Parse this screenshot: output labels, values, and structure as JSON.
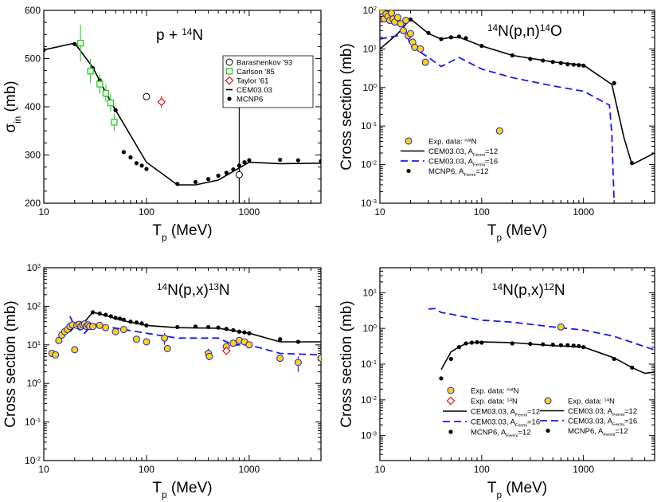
{
  "chart_data": [
    {
      "type": "scatter",
      "id": "p1",
      "title_parts": [
        "p + ",
        "14",
        "N"
      ],
      "xlabel_parts": [
        "T",
        "p",
        " (MeV)"
      ],
      "ylabel_parts": [
        "σ",
        "in",
        " (mb)"
      ],
      "xscale": "log",
      "yscale": "linear",
      "xlim": [
        10,
        5000
      ],
      "ylim": [
        200,
        600
      ],
      "xticks": [
        {
          "v": 10,
          "label": "10"
        },
        {
          "v": 100,
          "label": "100"
        },
        {
          "v": 1000,
          "label": "1000"
        }
      ],
      "yticks": [
        {
          "v": 200,
          "label": "200"
        },
        {
          "v": 300,
          "label": "300"
        },
        {
          "v": 400,
          "label": "400"
        },
        {
          "v": 500,
          "label": "500"
        },
        {
          "v": 600,
          "label": "600"
        }
      ],
      "legend_position": "top-right",
      "legend": [
        {
          "marker": "circle-open",
          "label_parts": [
            "Barashenkov '93"
          ]
        },
        {
          "marker": "square-green",
          "label_parts": [
            "Carlson '85"
          ]
        },
        {
          "marker": "diamond-red",
          "label_parts": [
            "Taylor '61"
          ]
        },
        {
          "line": "black",
          "label_parts": [
            "CEM03.03"
          ]
        },
        {
          "marker": "dot",
          "label_parts": [
            "MCNP6"
          ]
        }
      ],
      "series": [
        {
          "name": "CEM03.03",
          "style": "black-line",
          "x": [
            10,
            20,
            30,
            40,
            50,
            100,
            200,
            300,
            500,
            1000,
            2000,
            5000
          ],
          "y": [
            518,
            532,
            482,
            430,
            393,
            285,
            238,
            238,
            248,
            285,
            282,
            283
          ]
        },
        {
          "name": "MCNP6",
          "style": "dots",
          "x": [
            10,
            20,
            30,
            35,
            40,
            50,
            60,
            70,
            80,
            90,
            100,
            200,
            300,
            400,
            500,
            600,
            700,
            800,
            900,
            1000,
            2000,
            3000,
            5000
          ],
          "y": [
            518,
            530,
            480,
            455,
            425,
            393,
            306,
            295,
            283,
            278,
            271,
            240,
            244,
            250,
            257,
            263,
            270,
            278,
            285,
            289,
            290,
            289,
            287
          ]
        },
        {
          "name": "Carlson '85",
          "style": "square-green",
          "x": [
            22.8,
            28.5,
            35.1,
            40.2,
            44.8,
            48.5
          ],
          "y": [
            532,
            474,
            447,
            428,
            408,
            368
          ],
          "err": [
            38,
            25,
            20,
            18,
            18,
            18
          ]
        },
        {
          "name": "Barashenkov '93",
          "style": "circle-open",
          "x": [
            100,
            800
          ],
          "y": [
            421,
            259
          ],
          "err": [
            0,
            140
          ]
        },
        {
          "name": "Taylor '61",
          "style": "diamond-red",
          "x": [
            140
          ],
          "y": [
            410
          ],
          "err": [
            12
          ]
        }
      ]
    },
    {
      "type": "scatter",
      "id": "p2",
      "title_parts": [
        "14",
        "N(p,n)",
        "14",
        "O"
      ],
      "xlabel_parts": [
        "T",
        "p",
        " (MeV)"
      ],
      "ylabel_parts": [
        "Cross section (mb)"
      ],
      "xscale": "log",
      "yscale": "log",
      "xlim": [
        10,
        5000
      ],
      "ylim": [
        0.001,
        100
      ],
      "xticks": [
        {
          "v": 10,
          "label": "10"
        },
        {
          "v": 100,
          "label": "100"
        },
        {
          "v": 1000,
          "label": "1000"
        }
      ],
      "yticks": [
        {
          "v": 0.001,
          "b": "10",
          "e": "-3"
        },
        {
          "v": 0.01,
          "b": "10",
          "e": "-2"
        },
        {
          "v": 0.1,
          "b": "10",
          "e": "-1"
        },
        {
          "v": 1,
          "b": "10",
          "e": "0"
        },
        {
          "v": 10,
          "b": "10",
          "e": "1"
        },
        {
          "v": 100,
          "b": "10",
          "e": "2"
        }
      ],
      "legend_position": "bottom-left",
      "legend": [
        {
          "marker": "circle-yellow",
          "label_parts": [
            "Exp. data: ",
            "nat",
            "N"
          ]
        },
        {
          "line": "black",
          "label_parts": [
            "CEM03.03, A",
            "Fermi",
            "=12"
          ]
        },
        {
          "line": "blue-dash",
          "label_parts": [
            "CEM03.03, A",
            "Fermi",
            "=16"
          ]
        },
        {
          "marker": "dot",
          "label_parts": [
            "MCNP6, A",
            "Fermi",
            "=12"
          ]
        }
      ],
      "series": [
        {
          "name": "CEM03.03, A_Fermi=12",
          "style": "black-line",
          "x": [
            10,
            12,
            15,
            20,
            30,
            40,
            50,
            60,
            100,
            200,
            500,
            1000,
            1900,
            2500,
            3000,
            5000
          ],
          "y": [
            10,
            15,
            25,
            60,
            25,
            18,
            20,
            20,
            12,
            6.8,
            4.6,
            3.8,
            1.2,
            0.05,
            0.01,
            0.02
          ]
        },
        {
          "name": "CEM03.03, A_Fermi=16",
          "style": "blue-dash",
          "x": [
            10,
            15,
            18,
            20,
            30,
            40,
            60,
            100,
            200,
            500,
            1000,
            1800,
            1900,
            2000
          ],
          "y": [
            18,
            22,
            30,
            12,
            6,
            3.5,
            6,
            3,
            1.8,
            1.1,
            0.8,
            0.35,
            0.06,
            0.0011
          ]
        },
        {
          "name": "MCNP6, A_Fermi=12",
          "style": "dots",
          "x": [
            20,
            30,
            40,
            50,
            60,
            70,
            100,
            200,
            300,
            400,
            500,
            600,
            700,
            800,
            900,
            1000,
            2000,
            3000
          ],
          "y": [
            58,
            26,
            18,
            20,
            21,
            19,
            12,
            6.8,
            5.5,
            5,
            4.6,
            4.3,
            4,
            3.9,
            3.8,
            3.7,
            1.3,
            0.011
          ]
        },
        {
          "name": "Exp. data: natN",
          "style": "circle-yellow",
          "x": [
            10.5,
            11,
            11.5,
            12,
            12.5,
            13,
            13.5,
            14,
            15,
            16,
            17,
            18,
            19,
            20,
            21,
            22,
            25,
            28,
            150
          ],
          "y": [
            95,
            60,
            80,
            70,
            55,
            85,
            60,
            50,
            65,
            45,
            30,
            55,
            22,
            25,
            15,
            11,
            10,
            4.5,
            0.075
          ]
        }
      ]
    },
    {
      "type": "scatter",
      "id": "p3",
      "title_parts": [
        "14",
        "N(p,x)",
        "13",
        "N"
      ],
      "xlabel_parts": [
        "T",
        "p",
        " (MeV)"
      ],
      "ylabel_parts": [
        "Cross section (mb)"
      ],
      "xscale": "log",
      "yscale": "log",
      "xlim": [
        10,
        5000
      ],
      "ylim": [
        0.01,
        1000
      ],
      "xticks": [
        {
          "v": 10,
          "label": "10"
        },
        {
          "v": 100,
          "label": "100"
        },
        {
          "v": 1000,
          "label": "1000"
        }
      ],
      "yticks": [
        {
          "v": 0.01,
          "b": "10",
          "e": "-2"
        },
        {
          "v": 0.1,
          "b": "10",
          "e": "-1"
        },
        {
          "v": 1,
          "b": "10",
          "e": "0"
        },
        {
          "v": 10,
          "b": "10",
          "e": "1"
        },
        {
          "v": 100,
          "b": "10",
          "e": "2"
        },
        {
          "v": 1000,
          "b": "10",
          "e": "3"
        }
      ],
      "legend_position": "bottom-right",
      "legend": [
        {
          "marker": "circle-yellow",
          "label_parts": [
            "Exp. data: ",
            "nat",
            "N"
          ]
        },
        {
          "marker": "diamond-red",
          "label_parts": [
            "Exp. data: ",
            "14",
            "N"
          ]
        },
        {
          "line": "black",
          "label_parts": [
            "CEM03.03, A",
            "Fermi",
            "=12"
          ]
        },
        {
          "line": "blue-dash",
          "label_parts": [
            "CEM03.03, A",
            "Fermi",
            "=16"
          ]
        },
        {
          "marker": "dot",
          "label_parts": [
            "MCNP6, A",
            "Fermi",
            "=12"
          ]
        }
      ],
      "series": [
        {
          "name": "CEM03.03, A_Fermi=12",
          "style": "black-line",
          "x": [
            18,
            20,
            25,
            30,
            40,
            50,
            60,
            100,
            200,
            500,
            1000,
            2000,
            5000
          ],
          "y": [
            22,
            30,
            40,
            70,
            58,
            48,
            42,
            32,
            28,
            27,
            20,
            12,
            12
          ]
        },
        {
          "name": "CEM03.03, A_Fermi=16",
          "style": "blue-dash",
          "x": [
            18,
            20,
            25,
            30,
            40,
            60,
            100,
            200,
            500,
            700,
            1000,
            2000,
            5000
          ],
          "y": [
            55,
            30,
            20,
            35,
            30,
            25,
            20,
            15,
            15,
            10,
            10,
            6,
            5.5
          ]
        },
        {
          "name": "MCNP6, A_Fermi=12",
          "style": "dots",
          "x": [
            30,
            35,
            40,
            45,
            50,
            55,
            60,
            70,
            80,
            90,
            100,
            200,
            300,
            400,
            500,
            600,
            700,
            800,
            900,
            1000,
            2000,
            3000
          ],
          "y": [
            70,
            65,
            60,
            55,
            50,
            48,
            45,
            40,
            38,
            36,
            32,
            29,
            30,
            29,
            28,
            26,
            24,
            22,
            21,
            20,
            14,
            12
          ]
        },
        {
          "name": "Exp. data: natN",
          "style": "circle-yellow",
          "x": [
            12,
            13,
            14,
            15,
            16,
            17,
            18,
            19,
            20,
            21,
            22,
            23,
            24,
            25,
            26,
            27,
            28,
            30,
            35,
            40,
            50,
            60,
            80,
            100,
            150,
            160,
            400,
            410,
            600,
            700,
            800,
            900,
            1000,
            2000,
            3000,
            5000
          ],
          "y": [
            6,
            5.5,
            13,
            18,
            22,
            25,
            30,
            33,
            7.5,
            32,
            34,
            30,
            33,
            35,
            30,
            33,
            30,
            30,
            32,
            28,
            22,
            25,
            14,
            12,
            15,
            8,
            6,
            5,
            9,
            11,
            13,
            12,
            10,
            4.5,
            3.5,
            4.5
          ],
          "err": [
            0,
            0,
            0,
            0,
            0,
            0,
            0,
            0,
            0,
            0,
            0,
            0,
            0,
            0,
            0,
            0,
            0,
            0,
            0,
            0,
            0,
            0,
            0,
            0,
            5,
            0,
            2,
            0,
            0,
            0,
            0,
            0,
            0,
            0,
            1.5,
            0
          ]
        },
        {
          "name": "Exp. data: 14N",
          "style": "diamond-red",
          "x": [
            600
          ],
          "y": [
            7
          ],
          "err": [
            0
          ]
        }
      ]
    },
    {
      "type": "scatter",
      "id": "p4",
      "title_parts": [
        "14",
        "N(p,x)",
        "12",
        "N"
      ],
      "xlabel_parts": [
        "T",
        "p",
        " (MeV)"
      ],
      "ylabel_parts": [
        "Cross section (mb)"
      ],
      "xscale": "log",
      "yscale": "log",
      "xlim": [
        10,
        5000
      ],
      "ylim": [
        0.0002,
        50
      ],
      "xticks": [
        {
          "v": 10,
          "label": "10"
        },
        {
          "v": 100,
          "label": "100"
        },
        {
          "v": 1000,
          "label": "1000"
        }
      ],
      "yticks": [
        {
          "v": 0.001,
          "b": "10",
          "e": "-3"
        },
        {
          "v": 0.01,
          "b": "10",
          "e": "-2"
        },
        {
          "v": 0.1,
          "b": "10",
          "e": "-1"
        },
        {
          "v": 1,
          "b": "10",
          "e": "0"
        },
        {
          "v": 10,
          "b": "10",
          "e": "1"
        }
      ],
      "legend_position": "bottom-right",
      "legend": [
        {
          "marker": "circle-yellow",
          "label_parts": [
            "Exp. data: ",
            "14",
            "N"
          ]
        },
        {
          "line": "black",
          "label_parts": [
            "CEM03.03, A",
            "Fermi",
            "=12"
          ]
        },
        {
          "line": "blue-dash",
          "label_parts": [
            "CEM03.03, A",
            "Fermi",
            "=16"
          ]
        },
        {
          "marker": "dot",
          "label_parts": [
            "MCNP6, A",
            "Fermi",
            "=12"
          ]
        }
      ],
      "series": [
        {
          "name": "CEM03.03, A_Fermi=12",
          "style": "black-line",
          "x": [
            40,
            50,
            60,
            70,
            80,
            100,
            200,
            500,
            1000,
            2000,
            3000,
            4000,
            5000
          ],
          "y": [
            0.07,
            0.22,
            0.3,
            0.38,
            0.4,
            0.42,
            0.4,
            0.33,
            0.3,
            0.15,
            0.08,
            0.055,
            0.06
          ]
        },
        {
          "name": "CEM03.03, A_Fermi=16",
          "style": "blue-dash",
          "x": [
            30,
            35,
            40,
            50,
            100,
            200,
            500,
            1000,
            2000,
            5000
          ],
          "y": [
            3.5,
            3.6,
            2.8,
            2.5,
            1.7,
            1.5,
            1.1,
            0.9,
            0.6,
            0.25
          ]
        },
        {
          "name": "MCNP6, A_Fermi=12",
          "style": "dots",
          "x": [
            40,
            50,
            60,
            70,
            80,
            90,
            100,
            200,
            300,
            400,
            500,
            600,
            700,
            800,
            900,
            1000,
            2000,
            3000
          ],
          "y": [
            0.04,
            0.14,
            0.3,
            0.38,
            0.4,
            0.41,
            0.4,
            0.38,
            0.37,
            0.36,
            0.35,
            0.34,
            0.34,
            0.33,
            0.32,
            0.3,
            0.14,
            0.08
          ]
        },
        {
          "name": "Exp. data: 14N",
          "style": "circle-yellow",
          "x": [
            600
          ],
          "y": [
            1.1
          ]
        }
      ]
    }
  ]
}
